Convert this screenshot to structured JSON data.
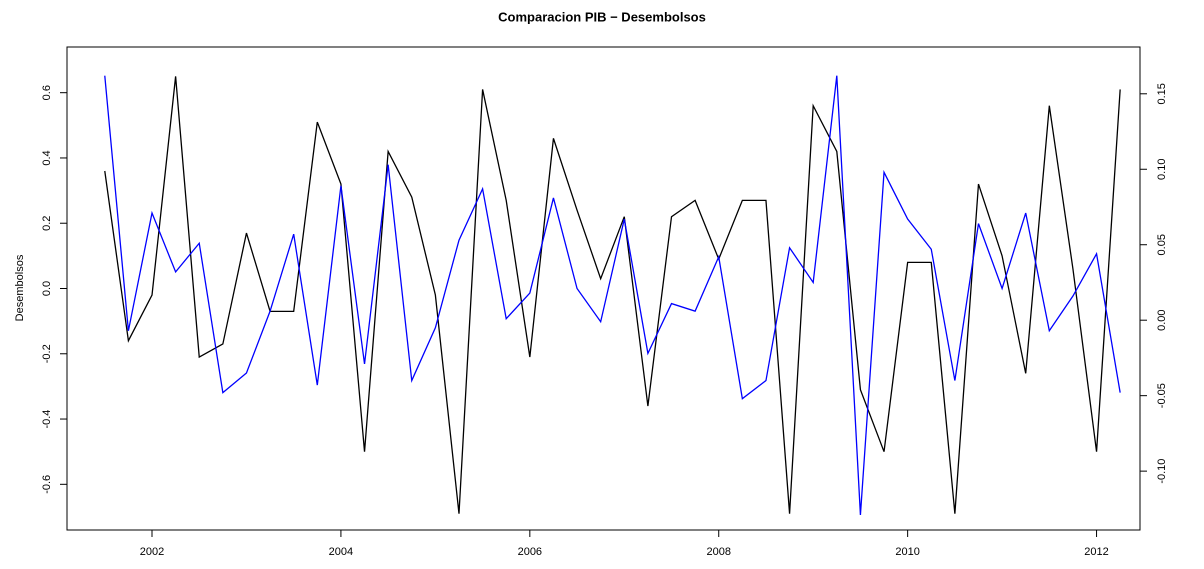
{
  "chart_data": {
    "type": "line",
    "title": "Comparacion PIB − Desembolsos",
    "y_label": "Desembolsos",
    "x": [
      2001.5,
      2001.75,
      2002,
      2002.25,
      2002.5,
      2002.75,
      2003,
      2003.25,
      2003.5,
      2003.75,
      2004,
      2004.25,
      2004.5,
      2004.75,
      2005,
      2005.25,
      2005.5,
      2005.75,
      2006,
      2006.25,
      2006.5,
      2006.75,
      2007,
      2007.25,
      2007.5,
      2007.75,
      2008,
      2008.25,
      2008.5,
      2008.75,
      2009,
      2009.25,
      2009.5,
      2009.75,
      2010,
      2010.25,
      2010.5,
      2010.75,
      2011,
      2011.25,
      2011.5,
      2011.75,
      2012,
      2012.25
    ],
    "series": [
      {
        "color": "#000000",
        "axis": "y",
        "values": [
          0.36,
          -0.16,
          -0.02,
          0.65,
          -0.21,
          -0.17,
          0.17,
          -0.07,
          -0.07,
          0.51,
          0.32,
          -0.5,
          0.42,
          0.28,
          -0.02,
          -0.69,
          0.61,
          0.27,
          -0.21,
          0.46,
          0.24,
          0.03,
          0.22,
          -0.36,
          0.22,
          0.27,
          0.09,
          0.27,
          0.27,
          -0.69,
          0.56,
          0.42,
          -0.31,
          -0.5,
          0.08,
          0.08,
          -0.69,
          0.32,
          0.1,
          -0.26,
          0.56,
          0.06,
          -0.5,
          0.61
        ]
      },
      {
        "color": "#0000ff",
        "axis": "y2",
        "values": [
          0.162,
          -0.007,
          0.071,
          0.032,
          0.051,
          -0.048,
          -0.035,
          0.006,
          0.057,
          -0.043,
          0.089,
          -0.029,
          0.103,
          -0.04,
          -0.005,
          0.053,
          0.087,
          0.001,
          0.018,
          0.081,
          0.021,
          -0.001,
          0.067,
          -0.022,
          0.011,
          0.006,
          0.042,
          -0.052,
          -0.04,
          0.048,
          0.025,
          0.162,
          -0.129,
          0.098,
          0.067,
          0.047,
          -0.04,
          0.064,
          0.021,
          0.071,
          -0.007,
          0.016,
          0.044,
          -0.048
        ]
      }
    ],
    "xlim": [
      2001.1,
      2012.46
    ],
    "xticks": [
      2002,
      2004,
      2006,
      2008,
      2010,
      2012
    ],
    "ylim": [
      -0.74,
      0.74
    ],
    "yticks": [
      {
        "value": -0.6,
        "label": "-0.6"
      },
      {
        "value": -0.4,
        "label": "-0.4"
      },
      {
        "value": -0.2,
        "label": "-0.2"
      },
      {
        "value": 0,
        "label": "0.0"
      },
      {
        "value": 0.2,
        "label": "0.2"
      },
      {
        "value": 0.4,
        "label": "0.4"
      },
      {
        "value": 0.6,
        "label": "0.6"
      }
    ],
    "y2lim": [
      -0.139,
      0.181
    ],
    "y2ticks": [
      {
        "value": -0.1,
        "label": "-0.10"
      },
      {
        "value": -0.05,
        "label": "-0.05"
      },
      {
        "value": 0,
        "label": "0.00"
      },
      {
        "value": 0.05,
        "label": "0.05"
      },
      {
        "value": 0.1,
        "label": "0.10"
      },
      {
        "value": 0.15,
        "label": "0.15"
      }
    ]
  }
}
